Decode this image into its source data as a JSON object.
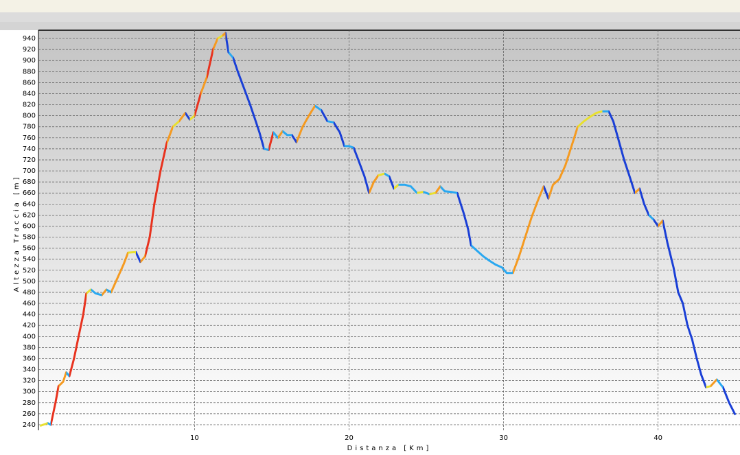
{
  "chart_data": {
    "type": "line",
    "xlabel": "Distanza [Km]",
    "ylabel": "Altezza Traccia [m]",
    "xlim": [
      -0.1,
      45.3
    ],
    "ylim": [
      230,
      955
    ],
    "xticks": [
      10,
      20,
      30,
      40
    ],
    "yticks": [
      240,
      260,
      280,
      300,
      320,
      340,
      360,
      380,
      400,
      420,
      440,
      460,
      480,
      500,
      520,
      540,
      560,
      580,
      600,
      620,
      640,
      660,
      680,
      700,
      720,
      740,
      760,
      780,
      800,
      820,
      840,
      860,
      880,
      900,
      920,
      940
    ],
    "grid": true,
    "color_scale": [
      "#1a3fd6",
      "#2aa8f0",
      "#e8e030",
      "#f59a20",
      "#e8321e"
    ],
    "x": [
      0.0,
      0.5,
      0.7,
      1.0,
      1.2,
      1.5,
      1.7,
      1.9,
      2.2,
      2.5,
      2.8,
      3.0,
      3.3,
      3.6,
      4.0,
      4.3,
      4.6,
      5.0,
      5.4,
      5.7,
      6.2,
      6.5,
      6.8,
      7.1,
      7.4,
      7.8,
      8.2,
      8.6,
      9.0,
      9.4,
      9.7,
      10.0,
      10.4,
      10.8,
      11.2,
      11.5,
      11.8,
      12.0,
      12.2,
      12.5,
      12.8,
      13.2,
      13.6,
      13.9,
      14.2,
      14.5,
      14.8,
      15.1,
      15.4,
      15.7,
      16.0,
      16.3,
      16.6,
      17.0,
      17.4,
      17.8,
      18.2,
      18.6,
      19.0,
      19.4,
      19.7,
      20.0,
      20.3,
      20.6,
      21.0,
      21.3,
      21.6,
      21.9,
      22.3,
      22.6,
      22.9,
      23.2,
      23.6,
      24.0,
      24.4,
      24.8,
      25.2,
      25.6,
      25.9,
      26.2,
      26.6,
      27.0,
      27.4,
      27.7,
      27.9,
      28.3,
      28.7,
      29.1,
      29.5,
      29.9,
      30.2,
      30.6,
      31.0,
      31.4,
      31.8,
      32.2,
      32.6,
      32.9,
      33.2,
      33.6,
      34.0,
      34.4,
      34.8,
      35.2,
      35.6,
      36.0,
      36.4,
      36.8,
      37.1,
      37.4,
      37.8,
      38.1,
      38.5,
      38.8,
      39.1,
      39.4,
      39.7,
      40.0,
      40.3,
      40.6,
      41.0,
      41.3,
      41.6,
      41.9,
      42.2,
      42.5,
      42.8,
      43.1,
      43.4,
      43.8,
      44.2,
      44.6,
      45.0
    ],
    "series": [
      {
        "name": "Altezza Traccia",
        "values": [
          238,
          243,
          240,
          280,
          310,
          318,
          335,
          328,
          360,
          400,
          440,
          478,
          485,
          478,
          475,
          485,
          480,
          505,
          530,
          552,
          553,
          535,
          545,
          580,
          640,
          700,
          750,
          780,
          790,
          805,
          793,
          800,
          840,
          870,
          920,
          940,
          945,
          950,
          915,
          905,
          880,
          850,
          820,
          795,
          770,
          740,
          738,
          770,
          760,
          772,
          765,
          765,
          752,
          780,
          800,
          818,
          810,
          790,
          788,
          770,
          745,
          745,
          742,
          720,
          690,
          660,
          680,
          692,
          695,
          690,
          668,
          675,
          675,
          672,
          660,
          662,
          658,
          660,
          672,
          663,
          662,
          660,
          625,
          595,
          565,
          555,
          545,
          537,
          530,
          525,
          515,
          515,
          545,
          580,
          615,
          645,
          672,
          650,
          675,
          685,
          710,
          745,
          780,
          790,
          798,
          805,
          808,
          808,
          790,
          760,
          720,
          695,
          660,
          668,
          640,
          620,
          612,
          600,
          610,
          570,
          525,
          480,
          460,
          420,
          395,
          360,
          330,
          308,
          310,
          322,
          308,
          280,
          258
        ]
      }
    ]
  }
}
